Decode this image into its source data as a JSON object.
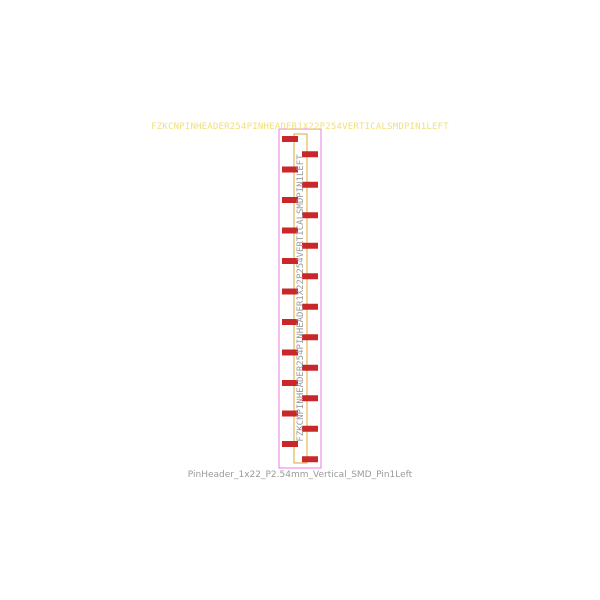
{
  "footprint": {
    "reference": "FZKCNPINHEADER254PINHEADER1X22P254VERTICALSMDPIN1LEFT",
    "value": "FZKCNPINHEADER254PINHEADER1X22P254VERTICALSMDPIN1LEFT",
    "name": "PinHeader_1x22_P2.54mm_Vertical_SMD_Pin1Left",
    "pin_count": 22,
    "pitch_mm": 2.54
  },
  "colors": {
    "pad": "#c8282a",
    "courtyard": "#e87ee6",
    "fab_outline": "#d9a93a",
    "silkscreen_text": "#f0e07a",
    "fab_text": "#9a9a9a"
  }
}
